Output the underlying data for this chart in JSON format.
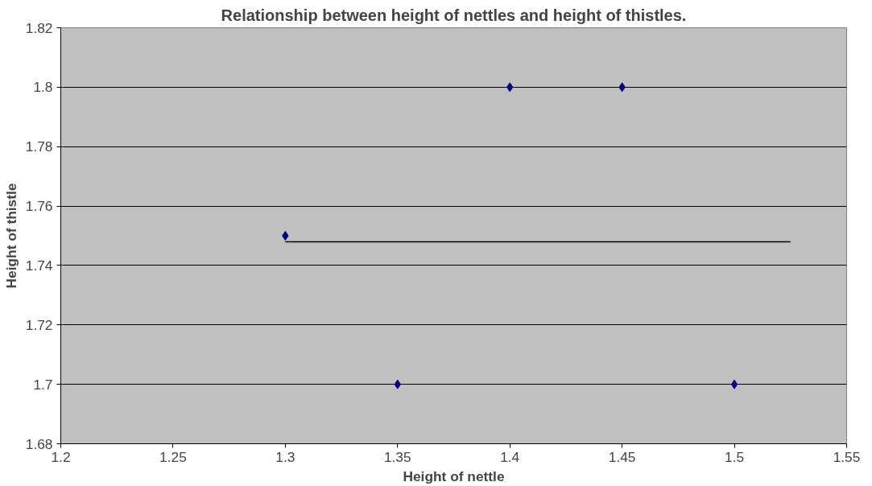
{
  "chart_data": {
    "type": "scatter",
    "title": "Relationship between height of nettles and height of thistles.",
    "xlabel": "Height of nettle",
    "ylabel": "Height of thistle",
    "x": [
      1.3,
      1.35,
      1.4,
      1.45,
      1.5
    ],
    "series": [
      {
        "color": "#000080",
        "values": [
          1.75,
          1.7,
          1.8,
          1.8,
          1.7
        ],
        "marker": "diamond"
      },
      {
        "type": "line",
        "color": "#000000",
        "x": [
          1.3,
          1.525
        ],
        "values": [
          1.748,
          1.748
        ],
        "marker": "none"
      }
    ],
    "xlim": [
      1.2,
      1.55
    ],
    "xticks": [
      1.2,
      1.25,
      1.3,
      1.35,
      1.4,
      1.45,
      1.5,
      1.55
    ],
    "ylim": [
      1.68,
      1.82
    ],
    "yticks": [
      1.68,
      1.7,
      1.72,
      1.74,
      1.76,
      1.78,
      1.8,
      1.82
    ],
    "grid": "y"
  }
}
